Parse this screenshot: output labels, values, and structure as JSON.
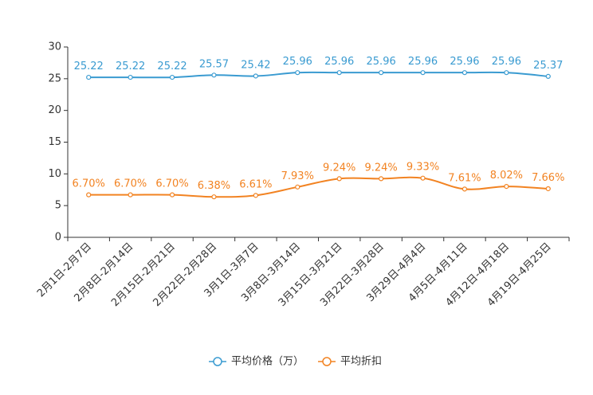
{
  "chart_data": {
    "type": "line",
    "title": "",
    "xlabel": "",
    "ylabel": "",
    "ylim": [
      0,
      30
    ],
    "yticks": [
      0,
      5,
      10,
      15,
      20,
      25,
      30
    ],
    "grid": false,
    "legend_position": "bottom",
    "categories": [
      "2月1日-2月7日",
      "2月8日-2月14日",
      "2月15日-2月21日",
      "2月22日-2月28日",
      "3月1日-3月7日",
      "3月8日-3月14日",
      "3月15日-3月21日",
      "3月22日-3月28日",
      "3月29日-4月4日",
      "4月5日-4月11日",
      "4月12日-4月18日",
      "4月19日-4月25日"
    ],
    "series": [
      {
        "name": "平均价格（万）",
        "color": "#3a9bd1",
        "values": [
          25.22,
          25.22,
          25.22,
          25.57,
          25.42,
          25.96,
          25.96,
          25.96,
          25.96,
          25.96,
          25.96,
          25.37
        ],
        "labels": [
          "25.22",
          "25.22",
          "25.22",
          "25.57",
          "25.42",
          "25.96",
          "25.96",
          "25.96",
          "25.96",
          "25.96",
          "25.96",
          "25.37"
        ]
      },
      {
        "name": "平均折扣",
        "color": "#f28322",
        "values": [
          6.7,
          6.7,
          6.7,
          6.38,
          6.61,
          7.93,
          9.24,
          9.24,
          9.33,
          7.61,
          8.02,
          7.66
        ],
        "labels": [
          "6.70%",
          "6.70%",
          "6.70%",
          "6.38%",
          "6.61%",
          "7.93%",
          "9.24%",
          "9.24%",
          "9.33%",
          "7.61%",
          "8.02%",
          "7.66%"
        ]
      }
    ]
  }
}
